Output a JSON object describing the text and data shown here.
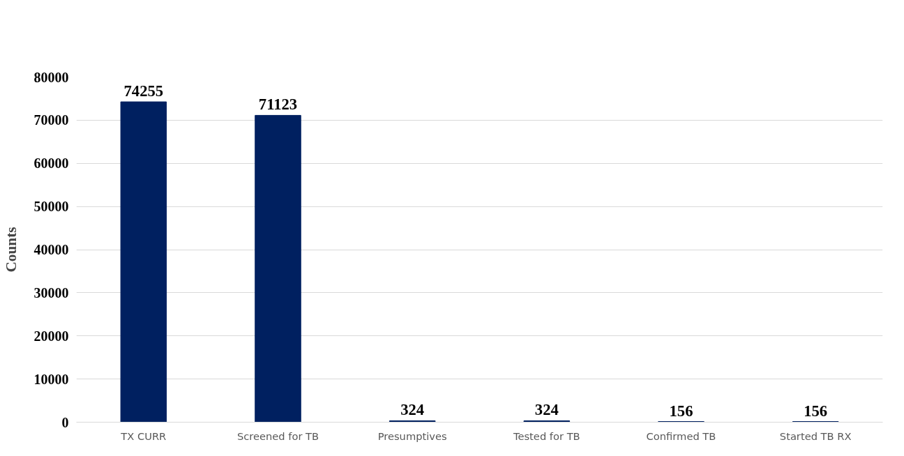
{
  "chart_data": {
    "type": "bar",
    "ylabel": "Counts",
    "categories": [
      "TX CURR",
      "Screened for TB",
      "Presumptives",
      "Tested for TB",
      "Confirmed TB",
      "Started TB RX"
    ],
    "values": [
      74255,
      71123,
      324,
      324,
      156,
      156
    ],
    "color": "#002060",
    "ylim": [
      0,
      80000
    ],
    "yticks": [
      0,
      10000,
      20000,
      30000,
      40000,
      50000,
      60000,
      70000,
      80000
    ],
    "grid": "y",
    "data_labels": true
  }
}
